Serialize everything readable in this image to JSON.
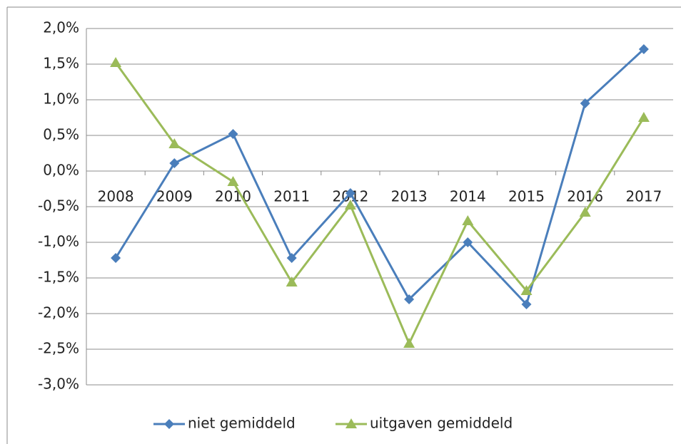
{
  "chart_data": {
    "type": "line",
    "categories": [
      "2008",
      "2009",
      "2010",
      "2011",
      "2012",
      "2013",
      "2014",
      "2015",
      "2016",
      "2017"
    ],
    "series": [
      {
        "name": "niet gemiddeld",
        "color": "#4a7ebb",
        "marker": "diamond",
        "values": [
          -1.22,
          0.11,
          0.52,
          -1.22,
          -0.31,
          -1.8,
          -1.0,
          -1.87,
          0.95,
          1.71
        ]
      },
      {
        "name": "uitgaven gemiddeld",
        "color": "#9bbb59",
        "marker": "triangle",
        "values": [
          1.52,
          0.38,
          -0.15,
          -1.56,
          -0.48,
          -2.42,
          -0.7,
          -1.68,
          -0.58,
          0.75
        ]
      }
    ],
    "ylim": [
      -3,
      2
    ],
    "yticks": [
      {
        "value": -3,
        "label": "-3,0%"
      },
      {
        "value": -2.5,
        "label": "-2,5%"
      },
      {
        "value": -2,
        "label": "-2,0%"
      },
      {
        "value": -1.5,
        "label": "-1,5%"
      },
      {
        "value": -1,
        "label": "-1,0%"
      },
      {
        "value": -0.5,
        "label": "-0,5%"
      },
      {
        "value": 0,
        "label": "0,0%"
      },
      {
        "value": 0.5,
        "label": "0,5%"
      },
      {
        "value": 1,
        "label": "1,0%"
      },
      {
        "value": 1.5,
        "label": "1,5%"
      },
      {
        "value": 2,
        "label": "2,0%"
      }
    ],
    "grid": true,
    "legend": "bottom"
  }
}
